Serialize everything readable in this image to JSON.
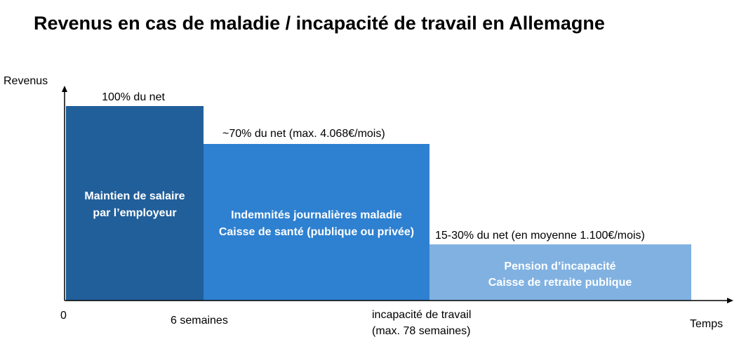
{
  "title": "Revenus en cas de maladie / incapacité de travail en Allemagne",
  "y_axis_label": "Revenus",
  "x_axis_label": "Temps",
  "x_labels": [
    "0",
    "6 semaines",
    [
      "incapacité de travail",
      "(max. 78 semaines)"
    ]
  ],
  "blocks": [
    {
      "level": "100% du net",
      "lines": [
        "Maintien de salaire",
        "par l’employeur"
      ]
    },
    {
      "level": "~70% du net (max. 4.068€/mois)",
      "lines": [
        "Indemnités journalières maladie",
        "Caisse de santé (publique ou privée)"
      ]
    },
    {
      "level": "15-30% du net (en moyenne 1.100€/mois)",
      "lines": [
        "Pension d’incapacité",
        "Caisse de retraite publique"
      ]
    }
  ]
}
